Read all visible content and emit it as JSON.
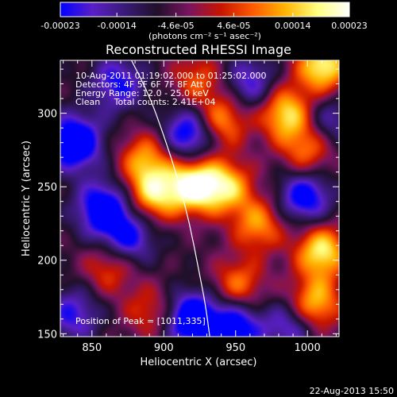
{
  "chart_data": {
    "type": "heatmap",
    "title": "Reconstructed RHESSI Image",
    "xlabel": "Heliocentric X (arcsec)",
    "ylabel": "Heliocentric Y (arcsec)",
    "xlim": [
      828,
      1022
    ],
    "ylim": [
      148,
      336
    ],
    "x_ticks": [
      850,
      900,
      950,
      1000
    ],
    "y_ticks": [
      150,
      200,
      250,
      300
    ],
    "colorbar": {
      "range": [
        -0.00023,
        0.00023
      ],
      "tick_labels": [
        "-0.00023",
        "-0.00014",
        "-4.6e-05",
        "4.6e-05",
        "0.00014",
        "0.00023"
      ],
      "tick_values": [
        -0.00023,
        -0.00014,
        -4.6e-05,
        4.6e-05,
        0.00014,
        0.00023
      ],
      "unit_label": "(photons cm⁻² s⁻¹ asec⁻²)",
      "colormap": [
        "#0000ff",
        "#5a1fc8",
        "#3a1a78",
        "#20102a",
        "#781460",
        "#c81400",
        "#ff5a00",
        "#ffb400",
        "#ffff80",
        "#ffffff"
      ]
    },
    "annotations": {
      "time_range": "10-Aug-2011 01:19:02.000 to 01:25:02.000",
      "detectors": "Detectors: 4F 5F 6F 7F 8F  Att 0",
      "energy": "Energy Range: 12.0 - 25.0 keV",
      "clean": "Clean     Total counts: 2.41E+04",
      "peak": "Position of Peak = [1011,335]"
    },
    "limb_curve": [
      [
        877,
        337
      ],
      [
        890,
        312
      ],
      [
        900,
        285
      ],
      [
        910,
        255
      ],
      [
        918,
        225
      ],
      [
        924,
        195
      ],
      [
        929,
        170
      ],
      [
        932,
        148
      ]
    ],
    "blobs": [
      {
        "x": 921,
        "y": 251,
        "amp": 1.0
      },
      {
        "x": 893,
        "y": 245,
        "amp": 0.75
      },
      {
        "x": 944,
        "y": 250,
        "amp": 0.7
      },
      {
        "x": 887,
        "y": 269,
        "amp": 0.6
      },
      {
        "x": 940,
        "y": 295,
        "amp": 0.65
      },
      {
        "x": 985,
        "y": 300,
        "amp": 0.8
      },
      {
        "x": 1000,
        "y": 275,
        "amp": 0.55
      },
      {
        "x": 966,
        "y": 224,
        "amp": 0.6
      },
      {
        "x": 1010,
        "y": 206,
        "amp": 0.85
      },
      {
        "x": 1005,
        "y": 170,
        "amp": 0.75
      },
      {
        "x": 952,
        "y": 183,
        "amp": 0.55
      },
      {
        "x": 862,
        "y": 195,
        "amp": 0.45
      },
      {
        "x": 890,
        "y": 165,
        "amp": 0.4
      },
      {
        "x": 1011,
        "y": 332,
        "amp": 0.9
      },
      {
        "x": 923,
        "y": 323,
        "amp": 0.45
      },
      {
        "x": 838,
        "y": 280,
        "amp": -0.9
      },
      {
        "x": 858,
        "y": 235,
        "amp": -0.8
      },
      {
        "x": 918,
        "y": 286,
        "amp": -0.75
      },
      {
        "x": 875,
        "y": 215,
        "amp": -0.6
      },
      {
        "x": 998,
        "y": 243,
        "amp": -0.7
      },
      {
        "x": 1015,
        "y": 295,
        "amp": -0.4
      },
      {
        "x": 950,
        "y": 155,
        "amp": -0.7
      },
      {
        "x": 920,
        "y": 160,
        "amp": -0.9
      },
      {
        "x": 837,
        "y": 163,
        "amp": -0.5
      },
      {
        "x": 988,
        "y": 155,
        "amp": -0.5
      },
      {
        "x": 960,
        "y": 320,
        "amp": -0.5
      },
      {
        "x": 868,
        "y": 320,
        "amp": -0.55
      }
    ]
  },
  "footer": {
    "timestamp": "22-Aug-2013 15:50"
  }
}
